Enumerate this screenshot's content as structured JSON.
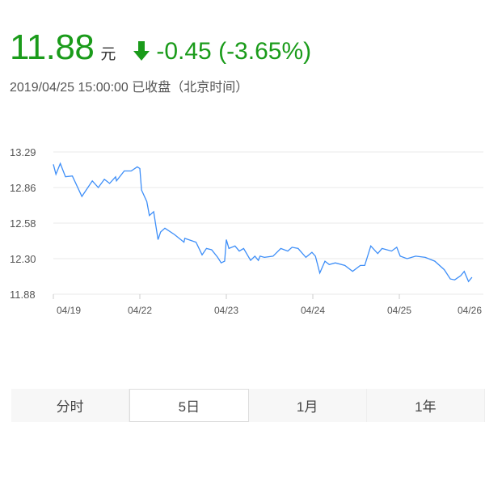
{
  "quote": {
    "price": "11.88",
    "unit": "元",
    "direction_icon": "arrow-down-icon",
    "change": "-0.45 (-3.65%)",
    "color": "#1a9b1a",
    "timestamp": "2019/04/25 15:00:00  已收盘（北京时间）"
  },
  "chart_data": {
    "type": "line",
    "xlabel": "",
    "ylabel": "",
    "x_tick_labels": [
      "04/19",
      "04/22",
      "04/23",
      "04/24",
      "04/25",
      "04/26"
    ],
    "y_tick_labels": [
      "13.29",
      "12.86",
      "12.58",
      "12.30",
      "11.88"
    ],
    "ylim": [
      11.88,
      13.29
    ],
    "grid": true,
    "line_color": "#3d8ef8",
    "series": [
      {
        "t": [
          0,
          0.03,
          0.08,
          0.14,
          0.22,
          0.33,
          0.45,
          0.52,
          0.59,
          0.65,
          0.72,
          0.73,
          0.82,
          0.9,
          0.97,
          1.0,
          1.02,
          1.08,
          1.11,
          1.16,
          1.21,
          1.24,
          1.29,
          1.4,
          1.51,
          1.52,
          1.65,
          1.72,
          1.77,
          1.83,
          1.9,
          1.94,
          1.98,
          2.0,
          2.03,
          2.1,
          2.15,
          2.2,
          2.28,
          2.33,
          2.37,
          2.39,
          2.44,
          2.54,
          2.63,
          2.71,
          2.76,
          2.83,
          2.92,
          2.99,
          3.03,
          3.08,
          3.14,
          3.19,
          3.26,
          3.37,
          3.46,
          3.55,
          3.6,
          3.67,
          3.75,
          3.8,
          3.91,
          3.97,
          4.01,
          4.09,
          4.19,
          4.3,
          4.41,
          4.52,
          4.59,
          4.64,
          4.71,
          4.75,
          4.8,
          4.84
        ],
        "values": [
          13.14,
          13.02,
          13.15,
          12.99,
          13.0,
          12.79,
          12.94,
          12.86,
          12.96,
          12.91,
          12.99,
          12.94,
          13.06,
          13.06,
          13.11,
          13.09,
          12.84,
          12.75,
          12.64,
          12.67,
          12.45,
          12.51,
          12.54,
          12.49,
          12.43,
          12.46,
          12.43,
          12.33,
          12.38,
          12.37,
          12.31,
          12.25,
          12.27,
          12.45,
          12.38,
          12.4,
          12.36,
          12.38,
          12.28,
          12.32,
          12.28,
          12.32,
          12.31,
          12.32,
          12.38,
          12.36,
          12.39,
          12.38,
          12.31,
          12.35,
          12.32,
          12.13,
          12.27,
          12.23,
          12.25,
          12.22,
          12.15,
          12.22,
          12.22,
          12.4,
          12.34,
          12.38,
          12.36,
          12.39,
          12.32,
          12.3,
          12.32,
          12.31,
          12.27,
          12.17,
          12.06,
          12.05,
          12.1,
          12.15,
          12.03,
          12.08
        ]
      }
    ]
  },
  "tabs": [
    {
      "label": "分时",
      "active": false
    },
    {
      "label": "5日",
      "active": true
    },
    {
      "label": "1月",
      "active": false
    },
    {
      "label": "1年",
      "active": false
    }
  ]
}
